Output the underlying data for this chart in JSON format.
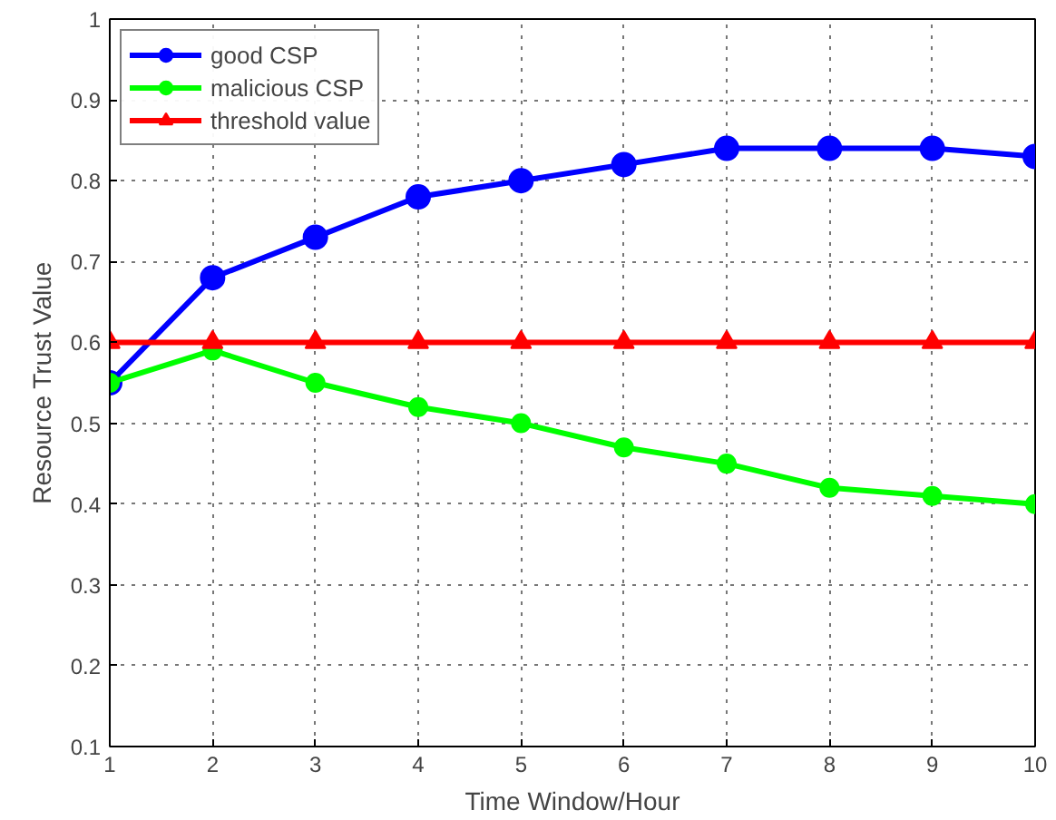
{
  "chart_data": {
    "type": "line",
    "xlabel": "Time Window/Hour",
    "ylabel": "Resource Trust Value",
    "x": [
      1,
      2,
      3,
      4,
      5,
      6,
      7,
      8,
      9,
      10
    ],
    "xlim": [
      1,
      10
    ],
    "xticks": [
      1,
      2,
      3,
      4,
      5,
      6,
      7,
      8,
      9,
      10
    ],
    "ylim": [
      0.1,
      1
    ],
    "yticks": [
      0.1,
      0.2,
      0.3,
      0.4,
      0.5,
      0.6,
      0.7,
      0.8,
      0.9,
      1
    ],
    "grid": true,
    "legend": "top left",
    "line_style": "solid",
    "series": [
      {
        "name": "good CSP",
        "color": "#0000ff",
        "marker": "circle",
        "values": [
          0.55,
          0.68,
          0.73,
          0.78,
          0.8,
          0.82,
          0.84,
          0.84,
          0.84,
          0.83
        ]
      },
      {
        "name": "malicious CSP",
        "color": "#00ff00",
        "marker": "circle",
        "values": [
          0.55,
          0.59,
          0.55,
          0.52,
          0.5,
          0.47,
          0.45,
          0.42,
          0.41,
          0.4
        ]
      },
      {
        "name": "threshold value",
        "color": "#ff0000",
        "marker": "triangle",
        "values": [
          0.6,
          0.6,
          0.6,
          0.6,
          0.6,
          0.6,
          0.6,
          0.6,
          0.6,
          0.6
        ]
      }
    ]
  }
}
